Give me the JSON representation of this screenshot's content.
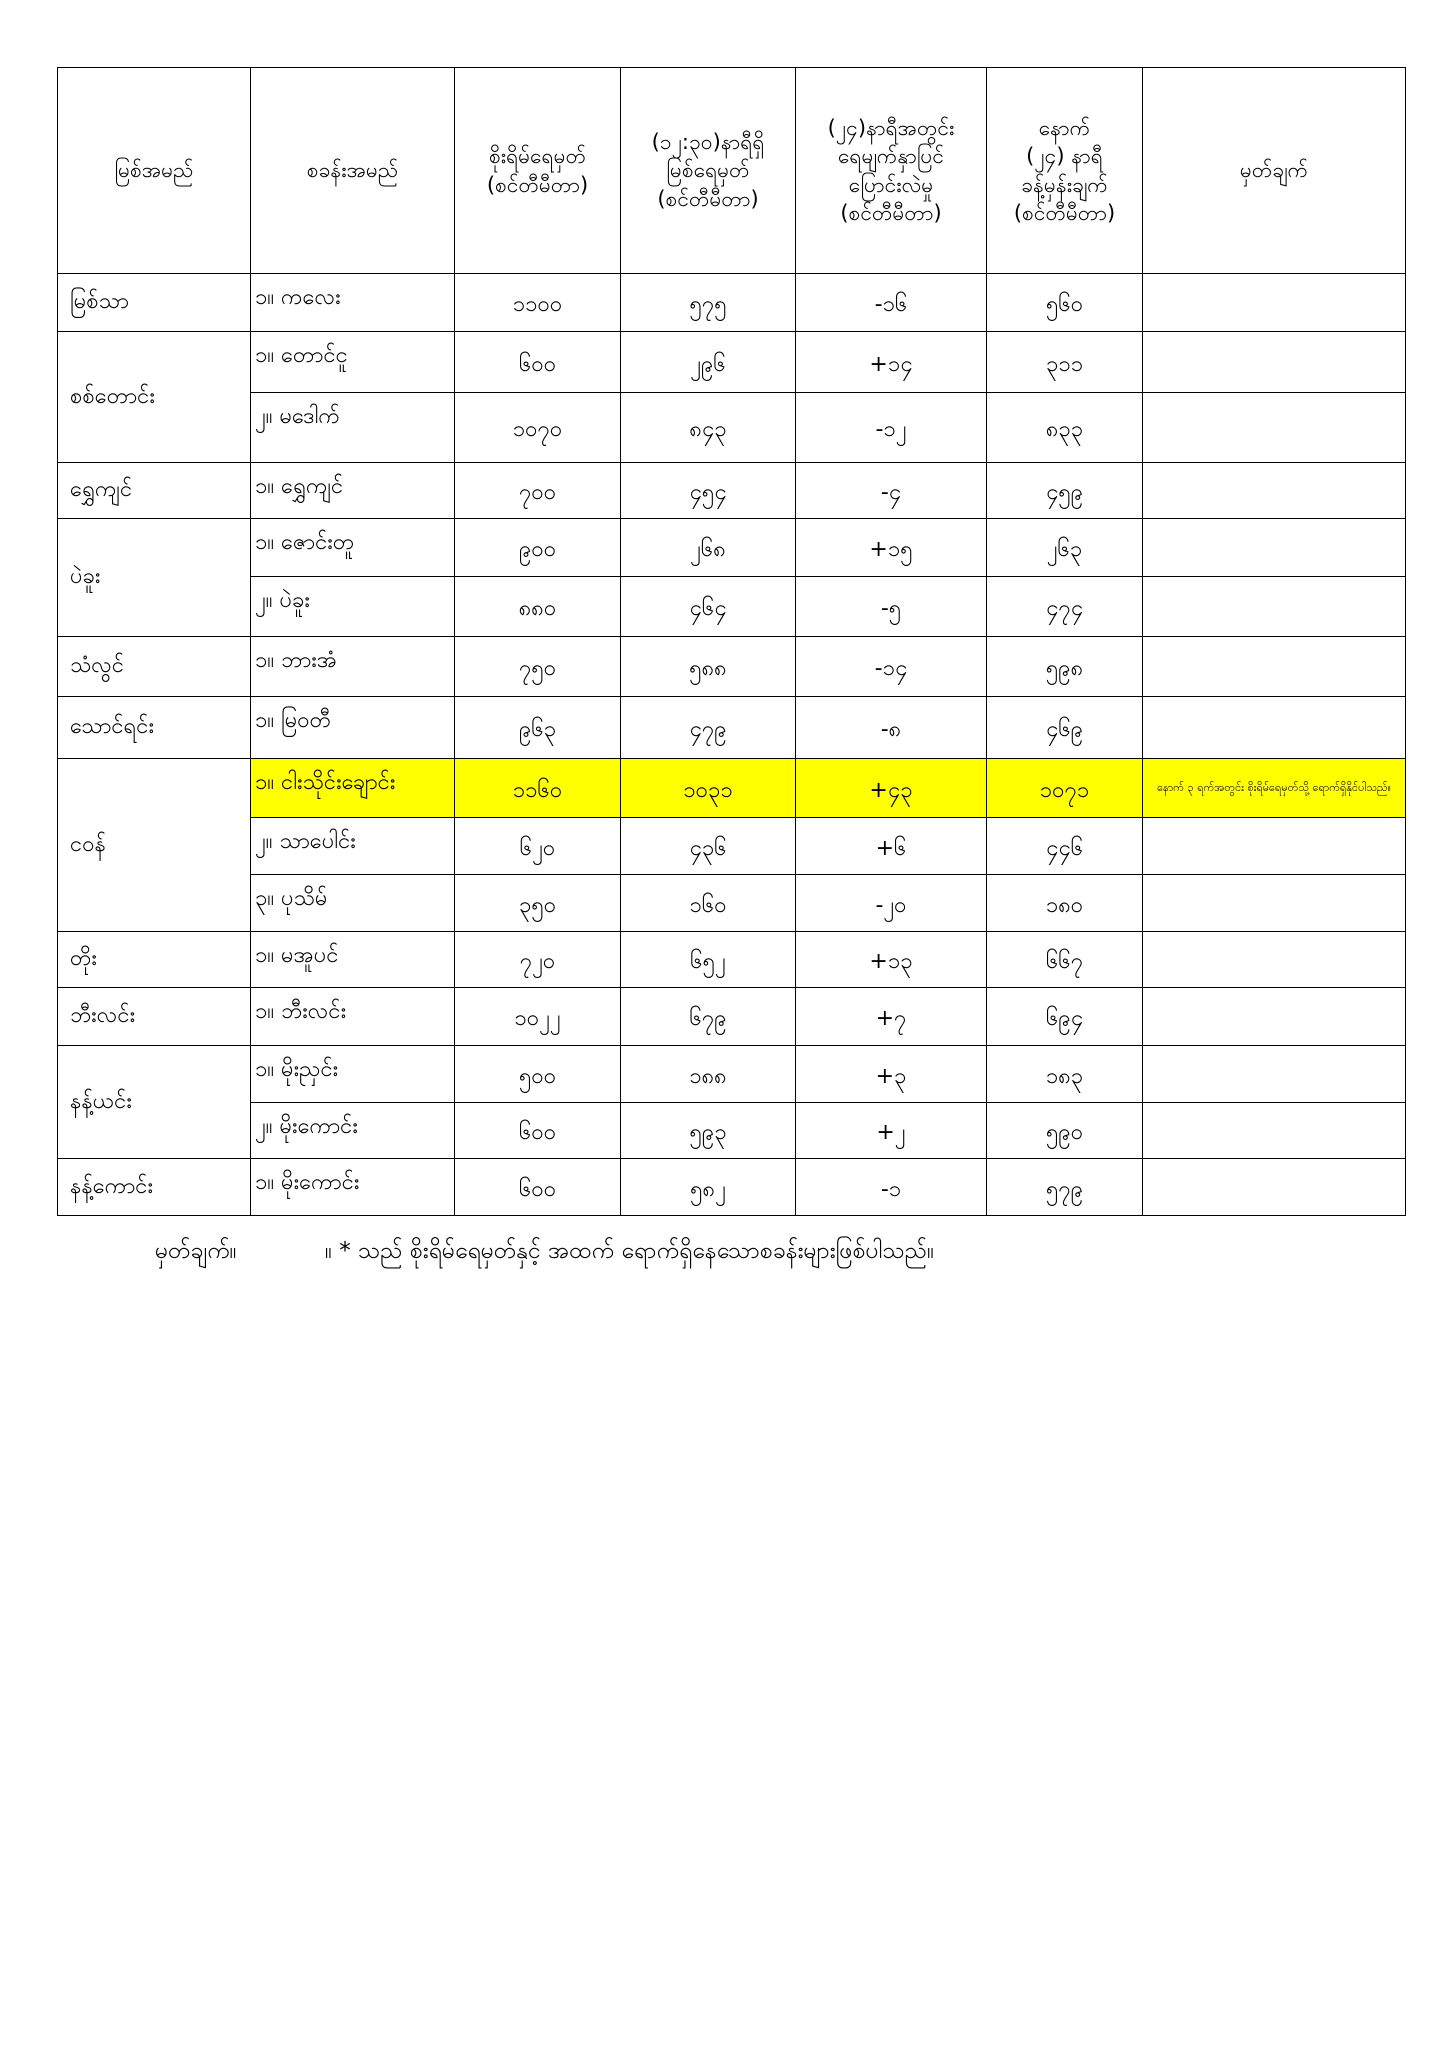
{
  "header": {
    "river": [
      "မြစ်အမည်"
    ],
    "station": [
      "စခန်းအမည်"
    ],
    "danger_level": [
      "စိုးရိမ်ရေမှတ်",
      "(စင်တီမီတာ)"
    ],
    "current_level": [
      "(၁၂:၃၀)နာရီရှိ",
      "မြစ်ရေမှတ်",
      "(စင်တီမီတာ)"
    ],
    "change_24h": [
      "(၂၄)နာရီအတွင်း",
      "ရေမျက်နှာပြင်",
      "ပြောင်းလဲမှု",
      "(စင်တီမီတာ)"
    ],
    "forecast_24h": [
      "နောက်",
      "(၂၄) နာရီ",
      "ခန့်မှန်းချက်",
      "(စင်တီမီတာ)"
    ],
    "remarks": [
      "မှတ်ချက်"
    ]
  },
  "highlight_color": "#ffff00",
  "rivers": [
    {
      "name": "မြစ်သာ",
      "stations": [
        {
          "station": "၁။ ကလေး",
          "danger": "၁၁၀၀",
          "level": "၅၇၅",
          "change": "-၁၆",
          "forecast": "၅၆၀",
          "remark": ""
        }
      ]
    },
    {
      "name": "စစ်တောင်း",
      "stations": [
        {
          "station": "၁။ တောင်ငူ",
          "danger": "၆၀၀",
          "level": "၂၉၆",
          "change": "+၁၄",
          "forecast": "၃၁၁",
          "remark": ""
        },
        {
          "station": "၂။ မဒေါက်",
          "danger": "၁၀၇၀",
          "level": "၈၄၃",
          "change": "-၁၂",
          "forecast": "၈၃၃",
          "remark": ""
        }
      ]
    },
    {
      "name": "ရွှေကျင်",
      "stations": [
        {
          "station": "၁။ ရွှေကျင်",
          "danger": "၇၀၀",
          "level": "၄၅၄",
          "change": "-၄",
          "forecast": "၄၅၉",
          "remark": ""
        }
      ]
    },
    {
      "name": "ပဲခူး",
      "stations": [
        {
          "station": "၁။ ဇောင်းတူ",
          "danger": "၉၀၀",
          "level": "၂၆၈",
          "change": "+၁၅",
          "forecast": "၂၆၃",
          "remark": ""
        },
        {
          "station": "၂။ ပဲခူး",
          "danger": "၈၈၀",
          "level": "၄၆၄",
          "change": "-၅",
          "forecast": "၄၇၄",
          "remark": ""
        }
      ]
    },
    {
      "name": "သံလွင်",
      "stations": [
        {
          "station": "၁။ ဘားအံ",
          "danger": "၇၅၀",
          "level": "၅၈၈",
          "change": "-၁၄",
          "forecast": "၅၉၈",
          "remark": ""
        }
      ]
    },
    {
      "name": "သောင်ရင်း",
      "stations": [
        {
          "station": "၁။ မြဝတီ",
          "danger": "၉၆၃",
          "level": "၄၇၉",
          "change": "-၈",
          "forecast": "၄၆၉",
          "remark": ""
        }
      ]
    },
    {
      "name": "ငဝန်",
      "stations": [
        {
          "station": "၁။ ငါးသိုင်းချောင်း",
          "danger": "၁၁၆၀",
          "level": "၁၀၃၁",
          "change": "+၄၃",
          "forecast": "၁၀၇၁",
          "remark": "နောက် ၃ ရက်အတွင်း စိုးရိမ်ရေမှတ်သို့ ရောက်ရှိနိုင်ပါသည်။",
          "highlight": true
        },
        {
          "station": "၂။ သာပေါင်း",
          "danger": "၆၂၀",
          "level": "၄၃၆",
          "change": "+၆",
          "forecast": "၄၄၆",
          "remark": ""
        },
        {
          "station": "၃။ ပုသိမ်",
          "danger": "၃၅၀",
          "level": "၁၆၀",
          "change": "-၂၀",
          "forecast": "၁၈၀",
          "remark": ""
        }
      ]
    },
    {
      "name": "တိုး",
      "stations": [
        {
          "station": "၁။ မအူပင်",
          "danger": "၇၂၀",
          "level": "၆၅၂",
          "change": "+၁၃",
          "forecast": "၆၆၇",
          "remark": ""
        }
      ]
    },
    {
      "name": "ဘီးလင်း",
      "stations": [
        {
          "station": "၁။ ဘီးလင်း",
          "danger": "၁၀၂၂",
          "level": "၆၇၉",
          "change": "+၇",
          "forecast": "၆၉၄",
          "remark": ""
        }
      ]
    },
    {
      "name": "နန့်ယင်း",
      "stations": [
        {
          "station": "၁။ မိုးညှင်း",
          "danger": "၅၀၀",
          "level": "၁၈၈",
          "change": "+၃",
          "forecast": "၁၈၃",
          "remark": ""
        },
        {
          "station": "၂။ မိုးကောင်း",
          "danger": "၆၀၀",
          "level": "၅၉၃",
          "change": "+၂",
          "forecast": "၅၉၀",
          "remark": ""
        }
      ]
    },
    {
      "name": "နန့်ကောင်း",
      "stations": [
        {
          "station": "၁။ မိုးကောင်း",
          "danger": "၆၀၀",
          "level": "၅၈၂",
          "change": "-၁",
          "forecast": "၅၇၉",
          "remark": ""
        }
      ]
    }
  ],
  "footnote": {
    "label": "မှတ်ချက်။",
    "text": "။ * သည် စိုးရိမ်ရေမှတ်နှင့် အထက် ရောက်ရှိနေသောစခန်းများဖြစ်ပါသည်။"
  }
}
